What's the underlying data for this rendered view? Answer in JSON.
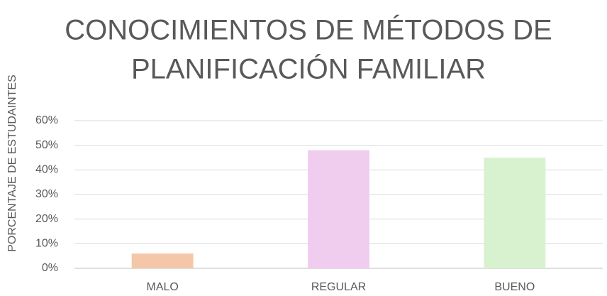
{
  "chart_data": {
    "type": "bar",
    "title": [
      "CONOCIMIENTOS DE MÉTODOS DE",
      "PLANIFICACIÓN FAMILIAR"
    ],
    "y_label": "PORCENTAJE DE ESTUDAINTES",
    "categories": [
      "MALO",
      "REGULAR",
      "BUENO"
    ],
    "values": [
      6,
      48,
      45
    ],
    "colors": [
      "#f4c7a8",
      "#f0cdef",
      "#d8f2d0"
    ],
    "ylim": [
      0,
      60
    ],
    "yticks": [
      {
        "value": 0,
        "label": "0%"
      },
      {
        "value": 10,
        "label": "10%"
      },
      {
        "value": 20,
        "label": "20%"
      },
      {
        "value": 30,
        "label": "30%"
      },
      {
        "value": 40,
        "label": "40%"
      },
      {
        "value": 50,
        "label": "50%"
      },
      {
        "value": 60,
        "label": "60%"
      }
    ],
    "grid": true
  }
}
